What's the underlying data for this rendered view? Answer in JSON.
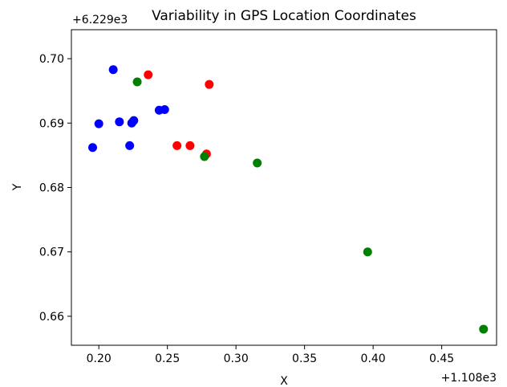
{
  "chart_data": {
    "type": "scatter",
    "title": "Variability in GPS Location Coordinates",
    "xlabel": "X",
    "ylabel": "Y",
    "x_offset_label": "+1.108e3",
    "y_offset_label": "+6.229e3",
    "xlim": [
      0.18,
      0.49
    ],
    "ylim": [
      0.6555,
      0.7045
    ],
    "xticks": [
      0.2,
      0.25,
      0.3,
      0.35,
      0.4,
      0.45
    ],
    "xtick_labels": [
      "0.20",
      "0.25",
      "0.30",
      "0.35",
      "0.40",
      "0.45"
    ],
    "yticks": [
      0.66,
      0.67,
      0.68,
      0.69,
      0.7
    ],
    "ytick_labels": [
      "0.66",
      "0.67",
      "0.68",
      "0.69",
      "0.70"
    ],
    "grid": false,
    "series": [
      {
        "color": "#0000ff",
        "points": [
          [
            0.2105,
            0.6983
          ],
          [
            0.2,
            0.6899
          ],
          [
            0.1955,
            0.6862
          ],
          [
            0.215,
            0.6902
          ],
          [
            0.224,
            0.69
          ],
          [
            0.2255,
            0.6904
          ],
          [
            0.2225,
            0.6865
          ],
          [
            0.244,
            0.692
          ],
          [
            0.248,
            0.6921
          ]
        ]
      },
      {
        "color": "#ff0000",
        "points": [
          [
            0.236,
            0.6975
          ],
          [
            0.2805,
            0.696
          ],
          [
            0.257,
            0.6865
          ],
          [
            0.2665,
            0.6865
          ],
          [
            0.2785,
            0.6852
          ]
        ]
      },
      {
        "color": "#008000",
        "points": [
          [
            0.228,
            0.6964
          ],
          [
            0.277,
            0.6848
          ],
          [
            0.3155,
            0.6838
          ],
          [
            0.396,
            0.67
          ],
          [
            0.4805,
            0.658
          ]
        ]
      }
    ]
  }
}
